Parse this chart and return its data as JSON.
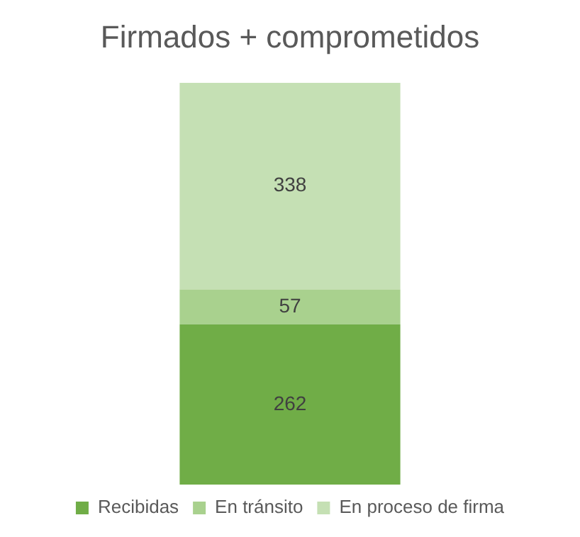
{
  "chart_data": {
    "type": "bar",
    "title": "Firmados + comprometidos",
    "categories": [
      null
    ],
    "stacked": true,
    "data_labels": true,
    "legend": "bottom",
    "tick_labels": false,
    "grid": false,
    "series": [
      {
        "name": "Recibidas",
        "color": "#70ad47",
        "values": [
          262
        ]
      },
      {
        "name": "En tránsito",
        "color": "#a9d18e",
        "values": [
          57
        ]
      },
      {
        "name": "En proceso de firma",
        "color": "#c5e0b4",
        "values": [
          338
        ]
      }
    ]
  }
}
